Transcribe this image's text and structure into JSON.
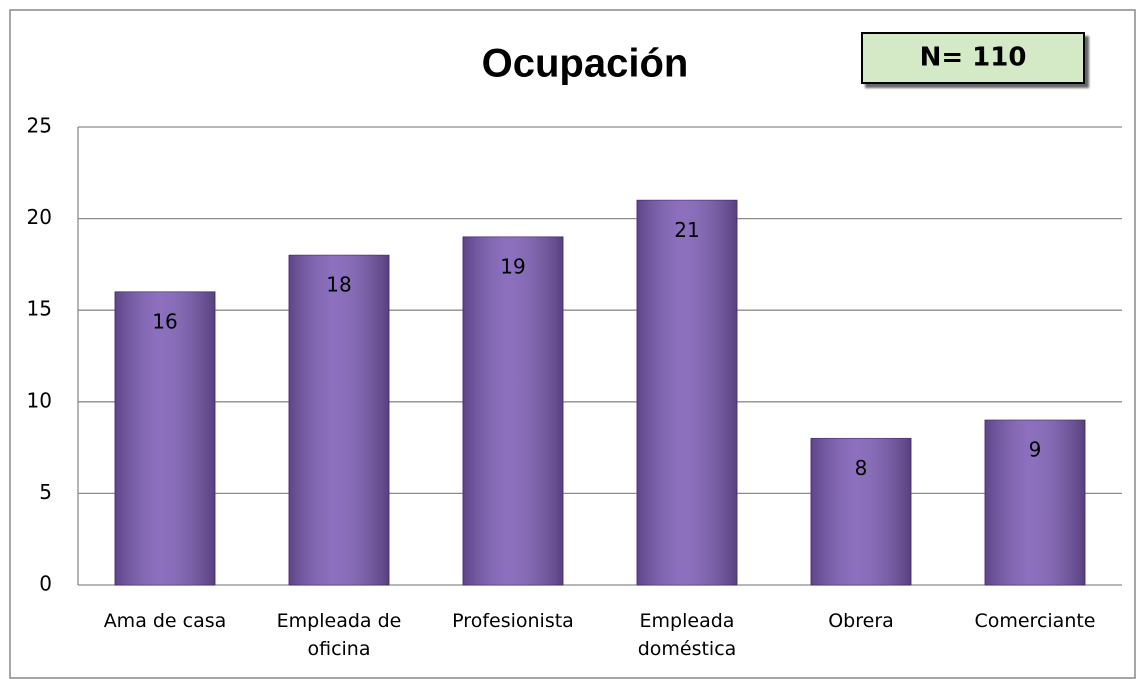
{
  "chart_data": {
    "type": "bar",
    "title": "Ocupación",
    "annotation": "N= 110",
    "categories": [
      "Ama de casa",
      "Empleada de oficina",
      "Profesionista",
      "Empleada doméstica",
      "Obrera",
      "Comerciante"
    ],
    "values": [
      16,
      18,
      19,
      21,
      8,
      9
    ],
    "color": "#7d5cb6",
    "ylim": [
      0,
      25
    ],
    "yticks": [
      0,
      5,
      10,
      15,
      20,
      25
    ],
    "grid": true,
    "data_labels": true
  }
}
